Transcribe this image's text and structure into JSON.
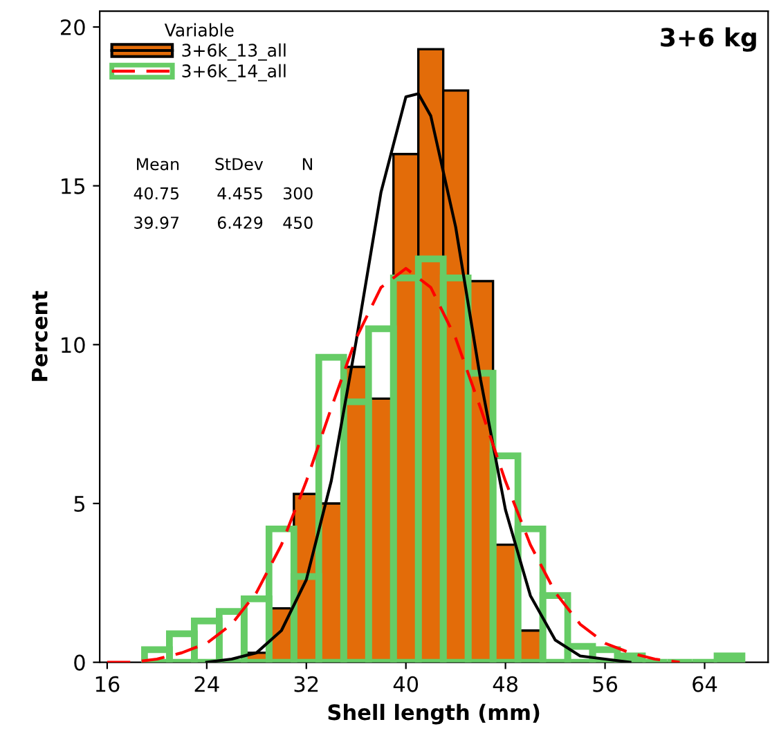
{
  "chart_data": {
    "type": "histogram",
    "xlabel": "Shell length (mm)",
    "ylabel": "Percent",
    "legend_title": "Variable",
    "legend": "top left",
    "bins": [
      19,
      21,
      23,
      25,
      27,
      29,
      31,
      33,
      35,
      37,
      39,
      41,
      43,
      45,
      47,
      49,
      51,
      53,
      55,
      57,
      59,
      61,
      63,
      65,
      67
    ],
    "series": [
      {
        "name": "3+6k_13_all",
        "color": "#e36c09",
        "values": [
          null,
          null,
          null,
          null,
          0.3,
          1.7,
          5.3,
          5.0,
          9.3,
          8.3,
          16.0,
          19.3,
          18.0,
          12.0,
          3.7,
          1.0,
          null,
          null,
          null,
          null,
          null,
          null,
          null,
          null
        ]
      },
      {
        "name": "3+6k_14_all",
        "color": "#66cc66",
        "values": [
          0.4,
          0.9,
          1.3,
          1.6,
          2.0,
          4.2,
          2.7,
          9.6,
          8.2,
          10.5,
          12.1,
          12.7,
          12.1,
          9.1,
          6.5,
          4.2,
          2.1,
          0.5,
          0.4,
          0.2,
          0,
          0,
          0,
          0.2
        ]
      },
      {
        "type": "line",
        "color": "#000000",
        "line_style": "solid",
        "x": [
          24,
          26,
          28,
          30,
          32,
          34,
          36,
          38,
          40,
          41,
          42,
          44,
          46,
          48,
          50,
          52,
          54,
          56,
          58
        ],
        "values": [
          0.0,
          0.1,
          0.3,
          1.0,
          2.6,
          5.7,
          10.1,
          14.8,
          17.8,
          17.9,
          17.2,
          13.7,
          8.9,
          4.8,
          2.1,
          0.7,
          0.2,
          0.1,
          0.0
        ]
      },
      {
        "type": "line",
        "color": "#ff0000",
        "line_style": "dashed",
        "x": [
          16,
          18,
          20,
          22,
          24,
          26,
          28,
          30,
          32,
          34,
          36,
          38,
          40,
          42,
          44,
          46,
          48,
          50,
          52,
          54,
          56,
          58,
          60,
          62
        ],
        "values": [
          0.0,
          0.0,
          0.1,
          0.3,
          0.6,
          1.2,
          2.2,
          3.7,
          5.7,
          8.0,
          10.2,
          11.8,
          12.4,
          11.8,
          10.2,
          8.0,
          5.7,
          3.7,
          2.2,
          1.2,
          0.6,
          0.3,
          0.1,
          0.0
        ]
      }
    ],
    "xlim": [
      15.4,
      69.1
    ],
    "xticks": [
      16,
      24,
      32,
      40,
      48,
      56,
      64
    ],
    "ylim": [
      0,
      20.5
    ],
    "yticks": [
      0,
      5,
      10,
      15,
      20
    ],
    "grid": false,
    "marker": "none",
    "annotations": [
      "3+6 kg",
      "Mean StDev N",
      "40.75 4.455 300",
      "39.97 6.429 450"
    ]
  }
}
